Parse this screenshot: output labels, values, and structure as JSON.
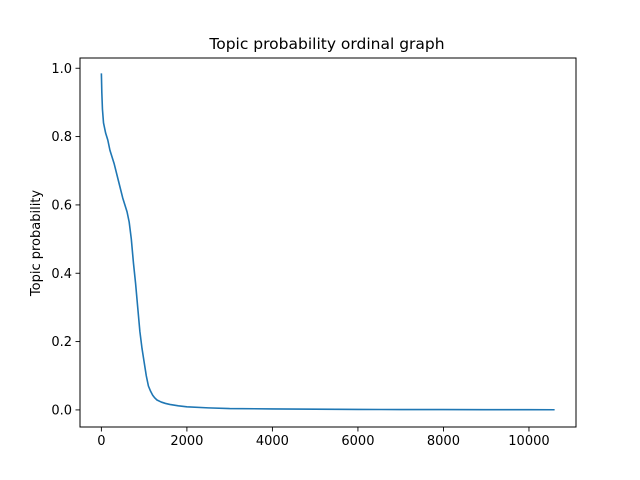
{
  "chart_data": {
    "type": "line",
    "title": "Topic probability ordinal graph",
    "xlabel": "",
    "ylabel": "Topic probability",
    "xlim": [
      -500,
      11100
    ],
    "ylim": [
      -0.05,
      1.03
    ],
    "xticks": [
      0,
      2000,
      4000,
      6000,
      8000,
      10000
    ],
    "yticks": [
      0.0,
      0.2,
      0.4,
      0.6,
      0.8,
      1.0
    ],
    "xtick_labels": [
      "0",
      "2000",
      "4000",
      "6000",
      "8000",
      "10000"
    ],
    "ytick_labels": [
      "0.0",
      "0.2",
      "0.4",
      "0.6",
      "0.8",
      "1.0"
    ],
    "grid": false,
    "series": [
      {
        "color": "#1f77b4",
        "x": [
          0,
          10,
          25,
          50,
          100,
          150,
          200,
          300,
          400,
          500,
          600,
          650,
          700,
          750,
          800,
          850,
          900,
          950,
          1000,
          1050,
          1100,
          1150,
          1200,
          1250,
          1300,
          1400,
          1500,
          1600,
          1800,
          2000,
          2500,
          3000,
          4000,
          5000,
          6000,
          7000,
          8000,
          9000,
          10000,
          10600
        ],
        "y": [
          0.985,
          0.93,
          0.88,
          0.84,
          0.81,
          0.79,
          0.76,
          0.72,
          0.67,
          0.62,
          0.58,
          0.55,
          0.5,
          0.43,
          0.37,
          0.3,
          0.23,
          0.18,
          0.14,
          0.1,
          0.07,
          0.055,
          0.043,
          0.035,
          0.029,
          0.023,
          0.019,
          0.016,
          0.012,
          0.009,
          0.006,
          0.004,
          0.003,
          0.002,
          0.0015,
          0.001,
          0.001,
          0.0008,
          0.0006,
          0.0005
        ]
      }
    ]
  }
}
